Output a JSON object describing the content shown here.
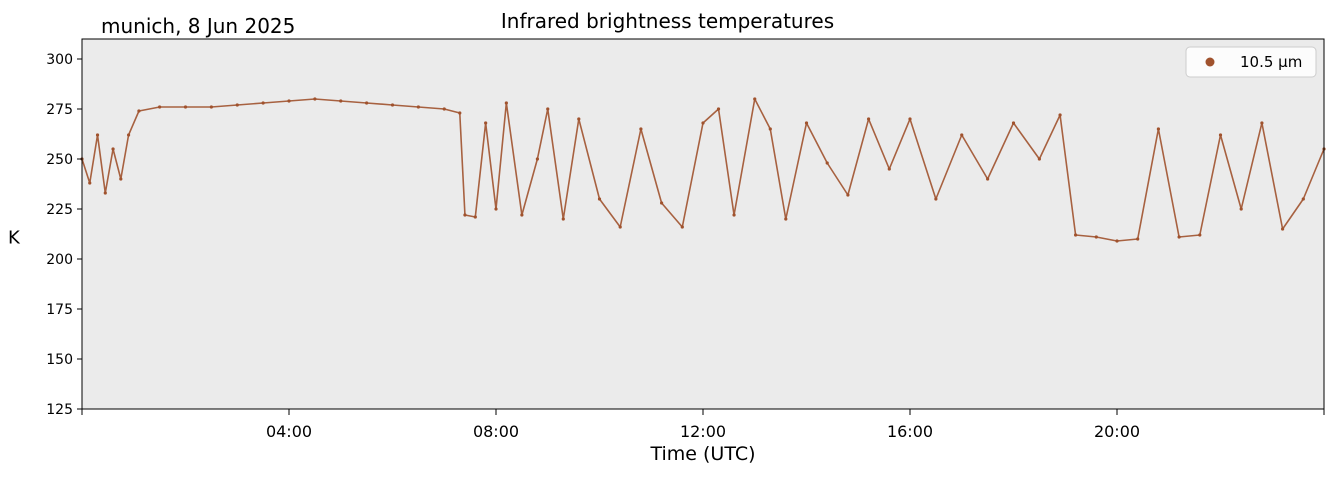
{
  "chart_data": {
    "type": "scatter",
    "title": "Infrared brightness temperatures",
    "subtitle": "munich, 8 Jun 2025",
    "xlabel": "Time (UTC)",
    "ylabel": "K",
    "xlim": [
      "00:00",
      "24:00"
    ],
    "ylim": [
      125,
      310
    ],
    "x_ticks": [
      "04:00",
      "08:00",
      "12:00",
      "16:00",
      "20:00"
    ],
    "y_ticks": [
      125,
      150,
      175,
      200,
      225,
      250,
      275,
      300
    ],
    "legend": {
      "position": "top-right",
      "entries": [
        "10.5 µm"
      ]
    },
    "grid": false,
    "background": "#ebebeb",
    "series": [
      {
        "name": "10.5 µm",
        "color": "#a0522d",
        "x_hours": [
          0.0,
          0.15,
          0.3,
          0.45,
          0.6,
          0.75,
          0.9,
          1.1,
          1.5,
          2.0,
          2.5,
          3.0,
          3.5,
          4.0,
          4.5,
          5.0,
          5.5,
          6.0,
          6.5,
          7.0,
          7.3,
          7.4,
          7.6,
          7.8,
          8.0,
          8.2,
          8.5,
          8.8,
          9.0,
          9.3,
          9.6,
          10.0,
          10.4,
          10.8,
          11.2,
          11.6,
          12.0,
          12.3,
          12.6,
          13.0,
          13.3,
          13.6,
          14.0,
          14.4,
          14.8,
          15.2,
          15.6,
          16.0,
          16.5,
          17.0,
          17.5,
          18.0,
          18.5,
          18.9,
          19.2,
          19.6,
          20.0,
          20.4,
          20.8,
          21.2,
          21.6,
          22.0,
          22.4,
          22.8,
          23.2,
          23.6,
          24.0
        ],
        "values": [
          250,
          238,
          262,
          233,
          255,
          240,
          262,
          274,
          276,
          276,
          276,
          277,
          278,
          279,
          280,
          279,
          278,
          277,
          276,
          275,
          273,
          222,
          221,
          268,
          225,
          278,
          222,
          250,
          275,
          220,
          270,
          230,
          216,
          265,
          228,
          216,
          268,
          275,
          222,
          280,
          265,
          220,
          268,
          248,
          232,
          270,
          245,
          270,
          230,
          262,
          240,
          268,
          250,
          272,
          212,
          211,
          209,
          210,
          265,
          211,
          212,
          262,
          225,
          268,
          215,
          230,
          255
        ]
      }
    ]
  }
}
